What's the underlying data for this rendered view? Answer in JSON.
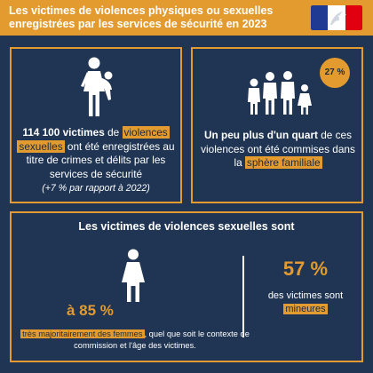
{
  "header": {
    "title": "Les victimes de violences physiques ou sexuelles enregistrées par les services de sécurité en 2023",
    "logo_name": "republique-francaise-logo"
  },
  "panel1": {
    "count": "114 100 victimes",
    "t1": " de ",
    "hl1": "violences sexuelles",
    "t2": " ont été enregistrées au titre de crimes et délits par les services de sécurité",
    "sub": "(+7 % par rapport à 2022)"
  },
  "panel2": {
    "badge": "27 %",
    "bold": "Un peu plus d'un quart",
    "t1": " de ces violences ont été commises dans la ",
    "hl": "sphère familiale"
  },
  "panel3": {
    "title": "Les victimes de violences sexuelles sont",
    "pct_left": "à 85 %",
    "hl_left": "très majoritairement des femmes",
    "desc_rest": ", quel que soit le contexte de commission et l'âge des victimes.",
    "pct_right": "57 %",
    "right_text": "des victimes sont",
    "hl_right": "mineures"
  },
  "colors": {
    "background": "#1f3553",
    "accent": "#e39b2f",
    "text": "#ffffff"
  }
}
